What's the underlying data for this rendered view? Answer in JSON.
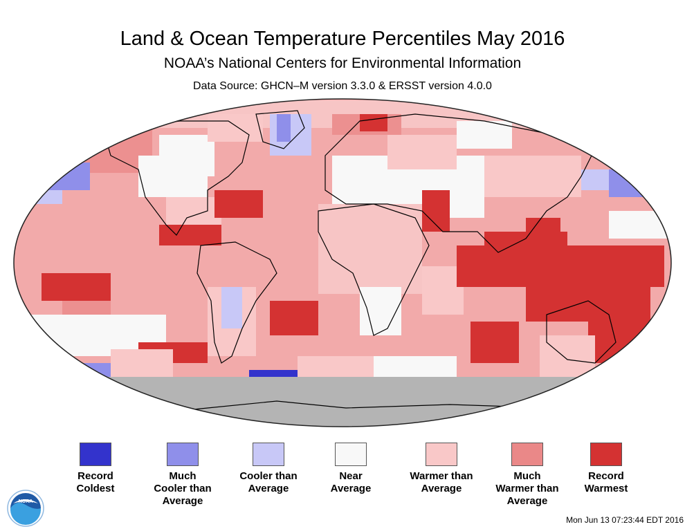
{
  "header": {
    "title": "Land & Ocean Temperature Percentiles May 2016",
    "subtitle": "NOAA’s National Centers for Environmental Information",
    "source": "Data Source: GHCN–M version 3.3.0 & ERSST version 4.0.0"
  },
  "legend": [
    {
      "label": "Record\nColdest",
      "color": "#3333cc"
    },
    {
      "label": "Much\nCooler than\nAverage",
      "color": "#8f8fea"
    },
    {
      "label": "Cooler than\nAverage",
      "color": "#c8c8f7"
    },
    {
      "label": "Near\nAverage",
      "color": "#f8f8f8"
    },
    {
      "label": "Warmer than\nAverage",
      "color": "#f9c8c8"
    },
    {
      "label": "Much\nWarmer than\nAverage",
      "color": "#ea8888"
    },
    {
      "label": "Record\nWarmest",
      "color": "#d43232"
    }
  ],
  "map": {
    "missing_color": "#b4b4b4",
    "land_outline_color": "#000000"
  },
  "logo": {
    "text": "NOAA"
  },
  "footer": {
    "timestamp": "Mon Jun 13 07:23:44 EDT 2016"
  }
}
